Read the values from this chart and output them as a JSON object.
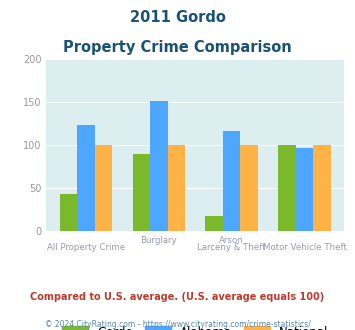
{
  "title_line1": "2011 Gordo",
  "title_line2": "Property Crime Comparison",
  "gordo": [
    43,
    90,
    18,
    100
  ],
  "alabama": [
    124,
    152,
    117,
    97
  ],
  "national": [
    100,
    100,
    100,
    100
  ],
  "gordo_color": "#7aba2a",
  "alabama_color": "#4da6ff",
  "national_color": "#ffb347",
  "bg_color": "#ddeef0",
  "ylim": [
    0,
    200
  ],
  "yticks": [
    0,
    50,
    100,
    150,
    200
  ],
  "note": "Compared to U.S. average. (U.S. average equals 100)",
  "footer": "© 2024 CityRating.com - https://www.cityrating.com/crime-statistics/",
  "title_color": "#1a5276",
  "note_color": "#c0392b",
  "footer_color": "#5588aa",
  "xlabel_color": "#9999bb",
  "tick_color": "#999999"
}
